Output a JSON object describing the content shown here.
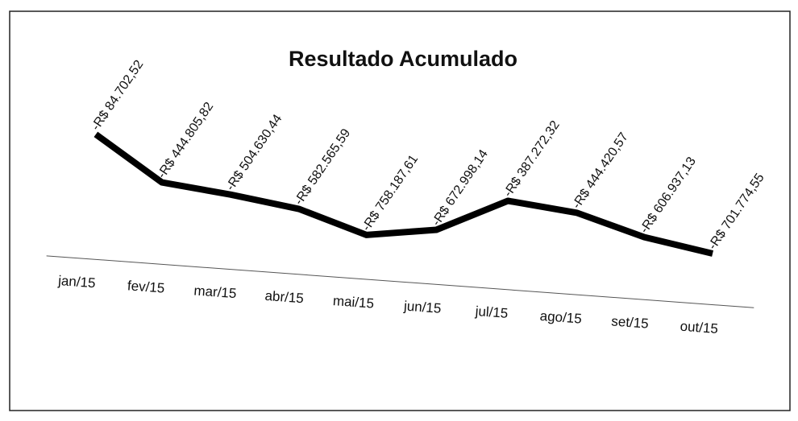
{
  "chart_data": {
    "type": "line",
    "title": "Resultado Acumulado",
    "categories": [
      "jan/15",
      "fev/15",
      "mar/15",
      "abr/15",
      "mai/15",
      "jun/15",
      "jul/15",
      "ago/15",
      "set/15",
      "out/15"
    ],
    "series": [
      {
        "name": "Resultado Acumulado",
        "color": "#000000",
        "values": [
          -84702.52,
          -444805.82,
          -504630.44,
          -582565.59,
          -758187.61,
          -672998.14,
          -387272.32,
          -444420.57,
          -606937.13,
          -701774.55
        ],
        "value_labels": [
          "-R$ 84.702,52",
          "-R$ 444.805,82",
          "-R$ 504.630,44",
          "-R$ 582.565,59",
          "-R$ 758.187,61",
          "-R$ 672.998,14",
          "-R$ 387.272,32",
          "-R$ 444.420,57",
          "-R$ 606.937,13",
          "-R$ 701.774,55"
        ]
      }
    ]
  }
}
